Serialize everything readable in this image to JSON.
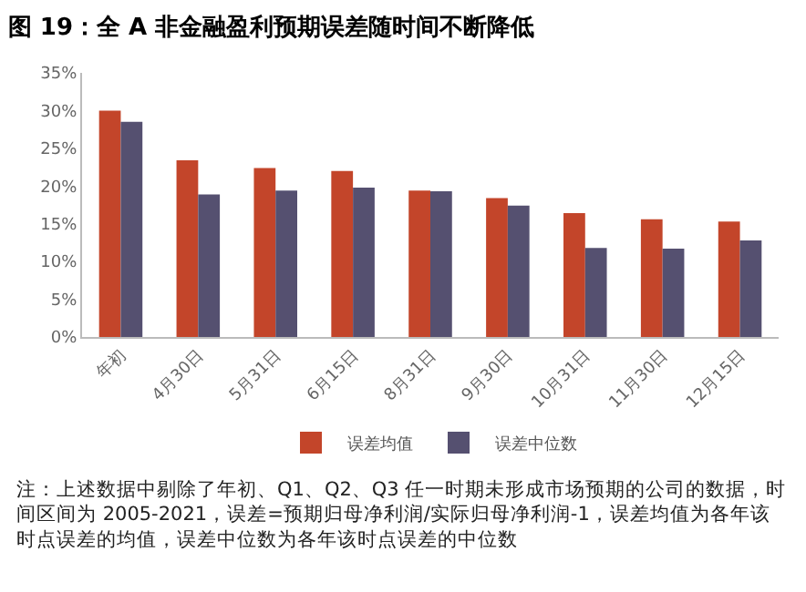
{
  "chart_data": {
    "type": "bar",
    "title": "图 19：全 A 非金融盈利预期误差随时间不断降低",
    "categories": [
      "年初",
      "4月30日",
      "5月31日",
      "6月15日",
      "8月31日",
      "9月30日",
      "10月31日",
      "11月30日",
      "12月15日"
    ],
    "series": [
      {
        "name": "误差均值",
        "color": "#c3452a",
        "values": [
          30.0,
          23.4,
          22.4,
          22.0,
          19.4,
          18.4,
          16.4,
          15.6,
          15.3
        ]
      },
      {
        "name": "误差中位数",
        "color": "#555070",
        "values": [
          28.5,
          18.9,
          19.4,
          19.8,
          19.3,
          17.4,
          11.8,
          11.7,
          12.8
        ]
      }
    ],
    "ylim": [
      0,
      35
    ],
    "yticks": [
      {
        "value": 0,
        "label": "0%"
      },
      {
        "value": 5,
        "label": "5%"
      },
      {
        "value": 10,
        "label": "10%"
      },
      {
        "value": 15,
        "label": "15%"
      },
      {
        "value": 20,
        "label": "20%"
      },
      {
        "value": 25,
        "label": "25%"
      },
      {
        "value": 30,
        "label": "30%"
      },
      {
        "value": 35,
        "label": "35%"
      }
    ],
    "legend": "bottom",
    "annotations": [
      "注：上述数据中剔除了年初、Q1、Q2、Q3 任一时期未形成市场预期的公司的数据，时间区间为 2005-2021，误差=预期归母净利润/实际归母净利润-1，误差均值为各年该时点误差的均值，误差中位数为各年该时点误差的中位数"
    ]
  }
}
